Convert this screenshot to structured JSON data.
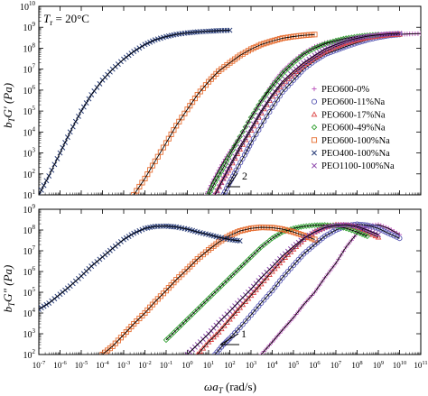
{
  "chart_data": [
    {
      "type": "line",
      "panel": "top",
      "ylabel_main": "b",
      "ylabel_sub": "T",
      "ylabel_rest": "G′ (Pa)",
      "annotation": {
        "main": "T",
        "sub": "r",
        "rest": " = 20°C"
      },
      "slope_label": "2",
      "xscale": "log",
      "yscale": "log",
      "xlim": [
        1e-07,
        100000000000.0
      ],
      "ylim": [
        10,
        10000000000.0
      ],
      "legend_position": "right",
      "series": [
        {
          "name": "PEO600-0%",
          "color": "#c060c0",
          "marker": "plus",
          "x": [
            8,
            15,
            30,
            60,
            120,
            300,
            1000,
            3000,
            10000.0,
            30000.0,
            100000.0,
            300000.0,
            1000000.0,
            3000000.0,
            10000000.0,
            30000000.0,
            100000000.0,
            300000000.0,
            1000000000.0,
            3000000000.0,
            10000000000.0,
            30000000000.0,
            100000000000.0
          ],
          "y": [
            10,
            40,
            150,
            500,
            1500,
            6000,
            50000.0,
            300000.0,
            2000000.0,
            8000000.0,
            25000000.0,
            60000000.0,
            120000000.0,
            180000000.0,
            230000000.0,
            280000000.0,
            320000000.0,
            360000000.0,
            400000000.0,
            430000000.0,
            460000000.0,
            480000000.0,
            500000000.0
          ]
        },
        {
          "name": "PEO600-11%Na",
          "color": "#5a5ab4",
          "marker": "circle",
          "x": [
            50,
            100,
            200,
            500,
            1000,
            3000,
            10000.0,
            30000.0,
            100000.0,
            300000.0,
            1000000.0,
            3000000.0,
            10000000.0,
            30000000.0,
            100000000.0,
            300000000.0,
            1000000000.0,
            3000000000.0,
            10000000000.0
          ],
          "y": [
            10,
            40,
            150,
            800,
            3000,
            20000.0,
            150000.0,
            800000.0,
            3000000.0,
            10000000.0,
            25000000.0,
            50000000.0,
            80000000.0,
            120000000.0,
            180000000.0,
            250000000.0,
            330000000.0,
            400000000.0,
            450000000.0
          ]
        },
        {
          "name": "PEO600-17%Na",
          "color": "#dc4646",
          "marker": "triangle",
          "x": [
            20,
            50,
            100,
            300,
            1000,
            3000,
            10000.0,
            30000.0,
            100000.0,
            300000.0,
            1000000.0,
            3000000.0,
            10000000.0,
            30000000.0,
            100000000.0,
            300000000.0,
            1000000000.0,
            3000000000.0,
            10000000000.0
          ],
          "y": [
            10,
            60,
            200,
            1500,
            12000.0,
            80000.0,
            500000.0,
            2000000.0,
            6000000.0,
            15000000.0,
            35000000.0,
            70000000.0,
            120000000.0,
            180000000.0,
            250000000.0,
            320000000.0,
            380000000.0,
            430000000.0,
            460000000.0
          ]
        },
        {
          "name": "PEO600-49%Na",
          "color": "#32a032",
          "marker": "diamond",
          "x": [
            10,
            20,
            50,
            100,
            300,
            1000,
            3000,
            10000.0,
            30000.0,
            100000.0,
            300000.0,
            1000000.0,
            3000000.0,
            10000000.0,
            30000000.0,
            100000000.0,
            300000000.0,
            1000000000.0
          ],
          "y": [
            10,
            40,
            200,
            800,
            6000,
            50000.0,
            300000.0,
            1500000.0,
            6000000.0,
            20000000.0,
            50000000.0,
            100000000.0,
            160000000.0,
            230000000.0,
            300000000.0,
            360000000.0,
            410000000.0,
            450000000.0
          ]
        },
        {
          "name": "PEO600-100%Na",
          "color": "#e66e32",
          "marker": "square",
          "x": [
            0.003,
            0.01,
            0.03,
            0.1,
            0.3,
            1,
            3,
            10,
            30,
            100,
            300,
            1000,
            3000,
            10000.0,
            30000.0,
            100000.0,
            300000.0,
            1000000.0
          ],
          "y": [
            10,
            60,
            400,
            3000,
            20000.0,
            120000.0,
            600000.0,
            2500000.0,
            8000000.0,
            20000000.0,
            45000000.0,
            90000000.0,
            150000000.0,
            220000000.0,
            300000000.0,
            360000000.0,
            410000000.0,
            450000000.0
          ]
        },
        {
          "name": "PEO400-100%Na",
          "color": "#283c78",
          "marker": "x",
          "x": [
            1e-07,
            3e-07,
            1e-06,
            3e-06,
            1e-05,
            3e-05,
            0.0001,
            0.0003,
            0.001,
            0.003,
            0.01,
            0.03,
            0.1,
            0.3,
            1,
            3,
            10,
            30,
            100
          ],
          "y": [
            10,
            80,
            1000,
            10000.0,
            100000.0,
            600000.0,
            3000000.0,
            10000000.0,
            30000000.0,
            70000000.0,
            150000000.0,
            250000000.0,
            360000000.0,
            460000000.0,
            540000000.0,
            600000000.0,
            650000000.0,
            690000000.0,
            720000000.0
          ]
        },
        {
          "name": "PEO1100-100%Na",
          "color": "#8c46aa",
          "marker": "x",
          "x": [
            20,
            50,
            100,
            300,
            1000,
            3000,
            10000.0,
            30000.0,
            100000.0,
            300000.0,
            1000000.0,
            3000000.0,
            10000000.0,
            30000000.0,
            100000000.0,
            300000000.0,
            1000000000.0,
            3000000000.0,
            10000000000.0
          ],
          "y": [
            10,
            60,
            250,
            2000,
            15000.0,
            100000.0,
            600000.0,
            2500000.0,
            8000000.0,
            20000000.0,
            45000000.0,
            90000000.0,
            150000000.0,
            220000000.0,
            300000000.0,
            370000000.0,
            430000000.0,
            480000000.0,
            510000000.0
          ]
        }
      ]
    },
    {
      "type": "line",
      "panel": "bottom",
      "ylabel_main": "b",
      "ylabel_sub": "T",
      "ylabel_rest": "G″ (Pa)",
      "xlabel_main": "ωa",
      "xlabel_sub": "T",
      "xlabel_rest": " (rad/s)",
      "slope_label": "1",
      "xscale": "log",
      "yscale": "log",
      "xlim": [
        1e-07,
        100000000000.0
      ],
      "ylim": [
        100,
        1000000000.0
      ],
      "x_ticks": [
        "10-7",
        "10-6",
        "10-5",
        "10-4",
        "10-3",
        "10-2",
        "10-1",
        "100",
        "101",
        "102",
        "103",
        "104",
        "105",
        "106",
        "107",
        "108",
        "109",
        "1010",
        "1011"
      ],
      "series": [
        {
          "name": "PEO600-0%",
          "color": "#c060c0",
          "marker": "plus",
          "x": [
            3000,
            10000.0,
            30000.0,
            100000.0,
            300000.0,
            1000000.0,
            3000000.0,
            10000000.0,
            30000000.0,
            100000000.0,
            300000000.0,
            1000000000.0,
            3000000000.0,
            10000000000.0
          ],
          "y": [
            100,
            400,
            1500,
            6000,
            25000.0,
            100000.0,
            500000.0,
            2500000.0,
            15000000.0,
            70000000.0,
            160000000.0,
            180000000.0,
            120000000.0,
            60000000.0
          ]
        },
        {
          "name": "PEO600-11%Na",
          "color": "#5a5ab4",
          "marker": "circle",
          "x": [
            20,
            50,
            100,
            300,
            1000,
            3000,
            10000.0,
            30000.0,
            100000.0,
            300000.0,
            1000000.0,
            3000000.0,
            10000000.0,
            30000000.0,
            100000000.0,
            300000000.0,
            1000000000.0,
            3000000000.0,
            10000000000.0
          ],
          "y": [
            100,
            300,
            600,
            2000,
            8000,
            30000.0,
            120000.0,
            500000.0,
            2000000.0,
            7000000.0,
            20000000.0,
            50000000.0,
            100000000.0,
            160000000.0,
            190000000.0,
            170000000.0,
            120000000.0,
            70000000.0,
            40000000.0
          ]
        },
        {
          "name": "PEO600-17%Na",
          "color": "#dc4646",
          "marker": "triangle",
          "x": [
            3,
            10,
            30,
            100,
            300,
            1000,
            3000,
            10000.0,
            30000.0,
            100000.0,
            300000.0,
            1000000.0,
            3000000.0,
            10000000.0,
            30000000.0,
            100000000.0,
            300000000.0,
            1000000000.0
          ],
          "y": [
            100,
            400,
            1200,
            5000,
            18000.0,
            70000.0,
            250000.0,
            1000000.0,
            3500000.0,
            12000000.0,
            35000000.0,
            80000000.0,
            140000000.0,
            180000000.0,
            170000000.0,
            130000000.0,
            80000000.0,
            45000000.0
          ]
        },
        {
          "name": "PEO600-49%Na",
          "color": "#32a032",
          "marker": "diamond",
          "x": [
            0.1,
            0.3,
            1,
            3,
            10,
            30,
            100,
            300,
            1000,
            3000,
            10000.0,
            30000.0,
            100000.0,
            300000.0,
            1000000.0,
            3000000.0,
            10000000.0,
            30000000.0,
            100000000.0,
            300000000.0
          ],
          "y": [
            500,
            1500,
            5000,
            15000.0,
            50000.0,
            150000.0,
            500000.0,
            1500000.0,
            5000000.0,
            15000000.0,
            40000000.0,
            80000000.0,
            120000000.0,
            150000000.0,
            170000000.0,
            175000000.0,
            160000000.0,
            120000000.0,
            80000000.0,
            50000000.0
          ]
        },
        {
          "name": "PEO600-100%Na",
          "color": "#e66e32",
          "marker": "square",
          "x": [
            0.0001,
            0.0003,
            0.001,
            0.003,
            0.01,
            0.03,
            0.1,
            0.3,
            1,
            3,
            10,
            30,
            100,
            300,
            1000,
            3000,
            10000.0,
            30000.0,
            100000.0,
            300000.0,
            1000000.0
          ],
          "y": [
            100,
            250,
            900,
            3000,
            10000.0,
            35000.0,
            120000.0,
            400000.0,
            1300000.0,
            4000000.0,
            11000000.0,
            26000000.0,
            55000000.0,
            90000000.0,
            120000000.0,
            135000000.0,
            130000000.0,
            110000000.0,
            80000000.0,
            55000000.0,
            35000000.0
          ]
        },
        {
          "name": "PEO400-100%Na",
          "color": "#283c78",
          "marker": "x",
          "x": [
            1e-07,
            3e-07,
            1e-06,
            3e-06,
            1e-05,
            3e-05,
            0.0001,
            0.0003,
            0.001,
            0.003,
            0.01,
            0.03,
            0.1,
            0.3,
            1,
            3,
            10,
            30,
            100,
            300
          ],
          "y": [
            15000.0,
            30000.0,
            80000.0,
            200000.0,
            600000.0,
            1800000.0,
            5000000.0,
            13000000.0,
            35000000.0,
            70000000.0,
            120000000.0,
            150000000.0,
            155000000.0,
            140000000.0,
            110000000.0,
            80000000.0,
            60000000.0,
            45000000.0,
            35000000.0,
            30000000.0
          ]
        },
        {
          "name": "PEO1100-100%Na",
          "color": "#8c46aa",
          "marker": "x",
          "x": [
            1,
            3,
            10,
            30,
            100,
            300,
            1000,
            3000,
            10000.0,
            30000.0,
            100000.0,
            300000.0,
            1000000.0,
            3000000.0,
            10000000.0,
            30000000.0,
            100000000.0,
            300000000.0,
            1000000000.0
          ],
          "y": [
            100,
            300,
            1000,
            3500,
            12000.0,
            40000.0,
            140000.0,
            500000.0,
            1700000.0,
            5500000.0,
            16000000.0,
            40000000.0,
            80000000.0,
            130000000.0,
            170000000.0,
            180000000.0,
            150000000.0,
            100000000.0,
            60000000.0
          ]
        }
      ]
    }
  ]
}
